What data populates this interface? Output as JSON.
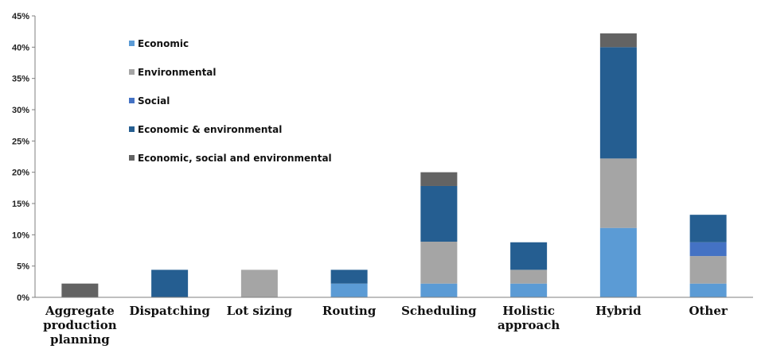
{
  "chart_data": {
    "type": "bar",
    "stacked": true,
    "categories": [
      [
        "Aggregate",
        "production",
        "planning"
      ],
      [
        "Dispatching"
      ],
      [
        "Lot sizing"
      ],
      [
        "Routing"
      ],
      [
        "Scheduling"
      ],
      [
        "Holistic",
        "approach"
      ],
      [
        "Hybrid"
      ],
      [
        "Other"
      ]
    ],
    "series": [
      {
        "name": "Economic",
        "color": "#5b9bd5",
        "values": [
          0,
          0,
          0,
          2.2,
          2.2,
          2.2,
          11.1,
          2.2
        ]
      },
      {
        "name": "Environmental",
        "color": "#a5a5a5",
        "values": [
          0,
          0,
          4.4,
          0,
          6.7,
          2.2,
          11.1,
          4.4
        ]
      },
      {
        "name": "Social",
        "color": "#4472c4",
        "values": [
          0,
          0,
          0,
          0,
          0,
          0,
          0,
          2.2
        ]
      },
      {
        "name": "Economic & environmental",
        "color": "#255e91",
        "values": [
          0,
          4.4,
          0,
          2.2,
          8.9,
          4.4,
          17.8,
          4.4
        ]
      },
      {
        "name": "Economic, social and environmental",
        "color": "#636363",
        "values": [
          2.2,
          0,
          0,
          0,
          2.2,
          0,
          2.2,
          0
        ]
      }
    ],
    "ylim": [
      0,
      45
    ],
    "yticks": [
      "0%",
      "5%",
      "10%",
      "15%",
      "20%",
      "25%",
      "30%",
      "35%",
      "40%",
      "45%"
    ],
    "title": "",
    "xlabel": "",
    "ylabel": "",
    "grid": false,
    "legend_position": "top-left"
  }
}
